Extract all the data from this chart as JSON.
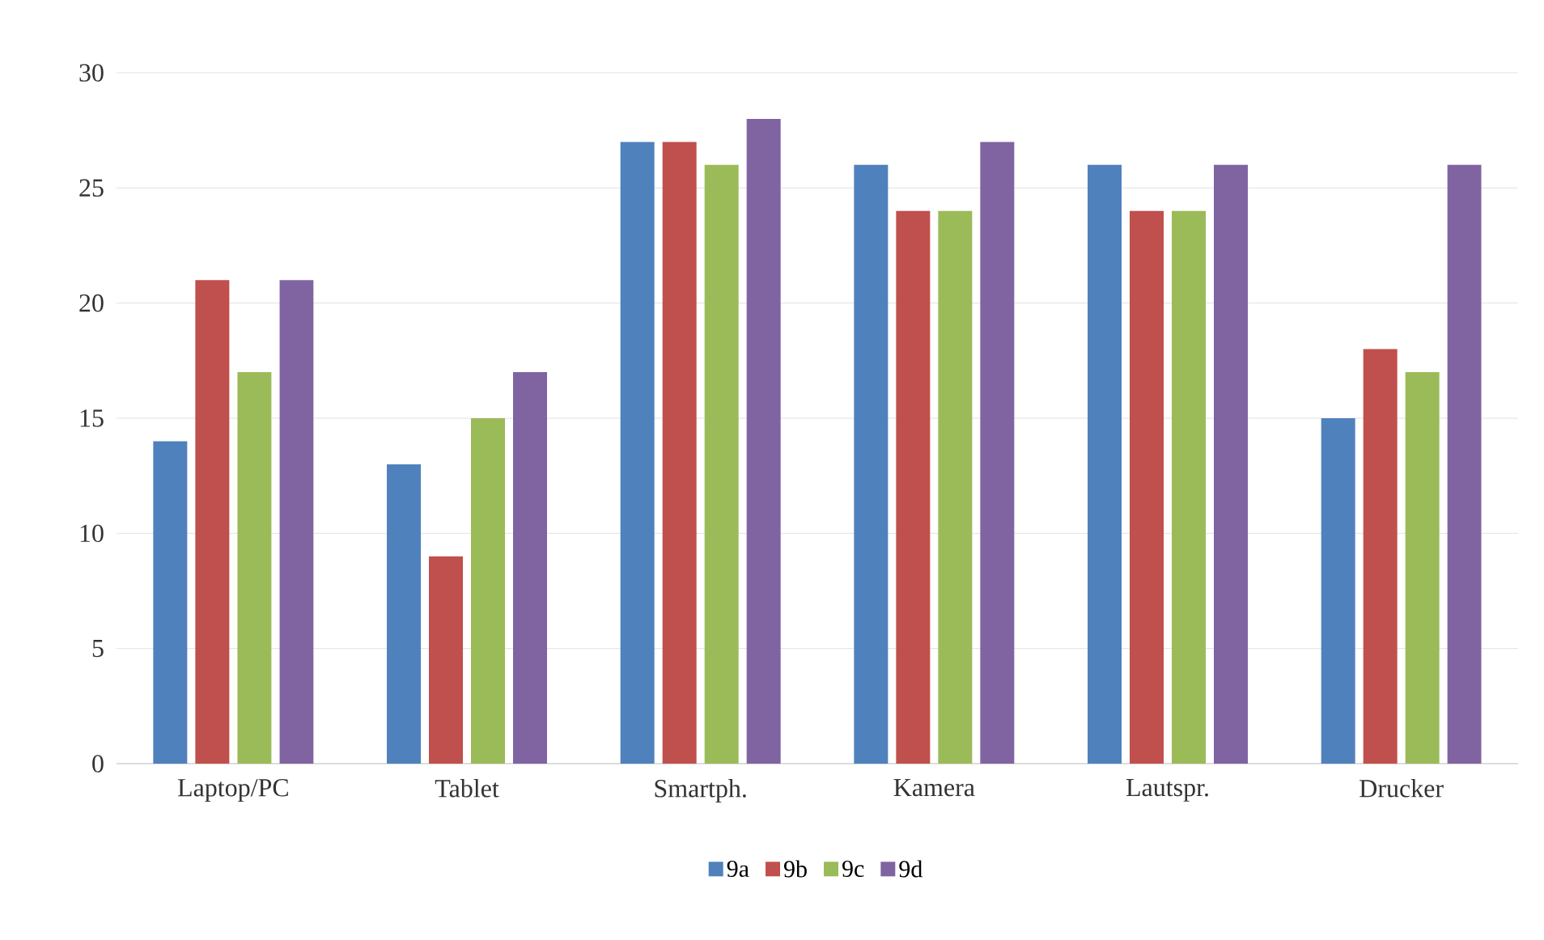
{
  "chart_data": {
    "type": "bar",
    "categories": [
      "Laptop/PC",
      "Tablet",
      "Smartph.",
      "Kamera",
      "Lautspr.",
      "Drucker"
    ],
    "series": [
      {
        "name": "9a",
        "color": "#4f81bd",
        "values": [
          14,
          13,
          27,
          26,
          26,
          15
        ]
      },
      {
        "name": "9b",
        "color": "#c0504d",
        "values": [
          21,
          9,
          27,
          24,
          24,
          18
        ]
      },
      {
        "name": "9c",
        "color": "#9bbb59",
        "values": [
          17,
          15,
          26,
          24,
          24,
          17
        ]
      },
      {
        "name": "9d",
        "color": "#8064a2",
        "values": [
          21,
          17,
          28,
          27,
          26,
          26
        ]
      }
    ],
    "ylim": [
      0,
      30
    ],
    "yticks": [
      0,
      5,
      10,
      15,
      20,
      25,
      30
    ],
    "grid": "y",
    "legend": "bottom"
  }
}
